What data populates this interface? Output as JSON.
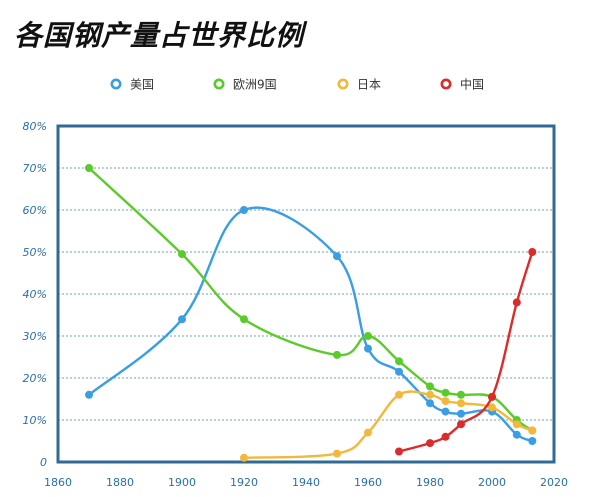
{
  "chart_data": {
    "type": "line",
    "title": "各国钢产量占世界比例",
    "xlabel": "",
    "ylabel": "",
    "xlim": [
      1860,
      2020
    ],
    "ylim": [
      0,
      80
    ],
    "x_ticks": [
      "1860",
      "1880",
      "1900",
      "1920",
      "1940",
      "1960",
      "1980",
      "2000",
      "2020"
    ],
    "y_ticks": [
      "0",
      "10%",
      "20%",
      "30%",
      "40%",
      "50%",
      "60%",
      "70%",
      "80%"
    ],
    "legend_position": "top",
    "grid": true,
    "series": [
      {
        "name": "美国",
        "color": "#3a9ee4",
        "points": [
          [
            1870,
            16
          ],
          [
            1900,
            34
          ],
          [
            1920,
            60
          ],
          [
            1950,
            49
          ],
          [
            1960,
            27
          ],
          [
            1970,
            21.5
          ],
          [
            1980,
            14
          ],
          [
            1985,
            12
          ],
          [
            1990,
            11.5
          ],
          [
            2000,
            12
          ],
          [
            2008,
            6.5
          ],
          [
            2013,
            5
          ]
        ]
      },
      {
        "name": "欧洲9国",
        "color": "#5acb2a",
        "points": [
          [
            1870,
            70
          ],
          [
            1900,
            49.5
          ],
          [
            1920,
            34
          ],
          [
            1950,
            25.5
          ],
          [
            1960,
            30
          ],
          [
            1970,
            24
          ],
          [
            1980,
            18
          ],
          [
            1985,
            16.5
          ],
          [
            1990,
            16
          ],
          [
            2000,
            15.5
          ],
          [
            2008,
            10
          ],
          [
            2013,
            7.5
          ]
        ]
      },
      {
        "name": "日本",
        "color": "#f3b83b",
        "points": [
          [
            1920,
            1
          ],
          [
            1950,
            2
          ],
          [
            1960,
            7
          ],
          [
            1970,
            16
          ],
          [
            1980,
            16
          ],
          [
            1985,
            14.5
          ],
          [
            1990,
            14
          ],
          [
            2000,
            13
          ],
          [
            2008,
            9
          ],
          [
            2013,
            7.5
          ]
        ]
      },
      {
        "name": "中国",
        "color": "#dd2a2a",
        "points": [
          [
            1970,
            2.5
          ],
          [
            1980,
            4.5
          ],
          [
            1985,
            6
          ],
          [
            1990,
            9
          ],
          [
            2000,
            15.5
          ],
          [
            2008,
            38
          ],
          [
            2013,
            50
          ]
        ]
      }
    ]
  }
}
